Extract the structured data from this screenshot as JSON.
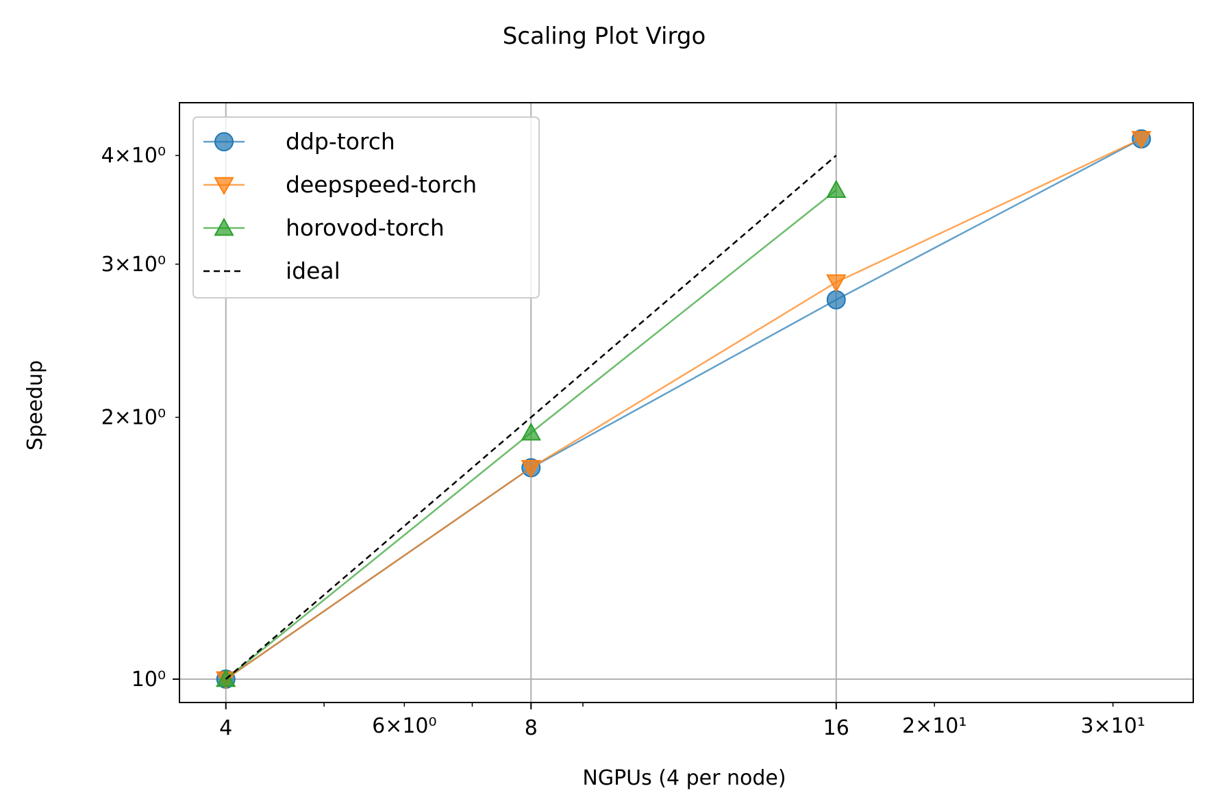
{
  "chart_data": {
    "type": "line",
    "title": "Scaling Plot Virgo",
    "xlabel": "NGPUs (4 per node)",
    "ylabel": "Speedup",
    "xscale": "log",
    "yscale": "log",
    "xlim": [
      3.6,
      36
    ],
    "ylim": [
      0.94,
      4.6
    ],
    "grid": true,
    "legend_position": "top-left",
    "xticks": [
      {
        "value": 4,
        "label": "4"
      },
      {
        "value": 8,
        "label": "8"
      },
      {
        "value": 16,
        "label": "16"
      }
    ],
    "xticks_minor": [
      {
        "value": 6,
        "label": "6×10⁰"
      },
      {
        "value": 20,
        "label": "2×10¹"
      },
      {
        "value": 30,
        "label": "3×10¹"
      }
    ],
    "xticks_minor_unlabeled": [
      5,
      7,
      9
    ],
    "yticks": [
      {
        "value": 1,
        "label": "10⁰"
      }
    ],
    "yticks_minor": [
      {
        "value": 2,
        "label": "2×10⁰"
      },
      {
        "value": 3,
        "label": "3×10⁰"
      },
      {
        "value": 4,
        "label": "4×10⁰"
      }
    ],
    "series": [
      {
        "name": "ddp-torch",
        "marker": "circle",
        "color": "#1f77b4",
        "dashed": false,
        "x": [
          4,
          8,
          16,
          32
        ],
        "y": [
          1.0,
          1.75,
          2.73,
          4.18
        ]
      },
      {
        "name": "deepspeed-torch",
        "marker": "triangle-down",
        "color": "#ff7f0e",
        "dashed": false,
        "x": [
          4,
          8,
          16,
          32
        ],
        "y": [
          1.0,
          1.75,
          2.86,
          4.18
        ]
      },
      {
        "name": "horovod-torch",
        "marker": "triangle-up",
        "color": "#2ca02c",
        "dashed": false,
        "x": [
          4,
          8,
          16
        ],
        "y": [
          1.0,
          1.92,
          3.65
        ]
      },
      {
        "name": "ideal",
        "marker": "none",
        "color": "#000000",
        "dashed": true,
        "x": [
          4,
          8,
          16
        ],
        "y": [
          1.0,
          2.0,
          4.0
        ]
      }
    ]
  }
}
